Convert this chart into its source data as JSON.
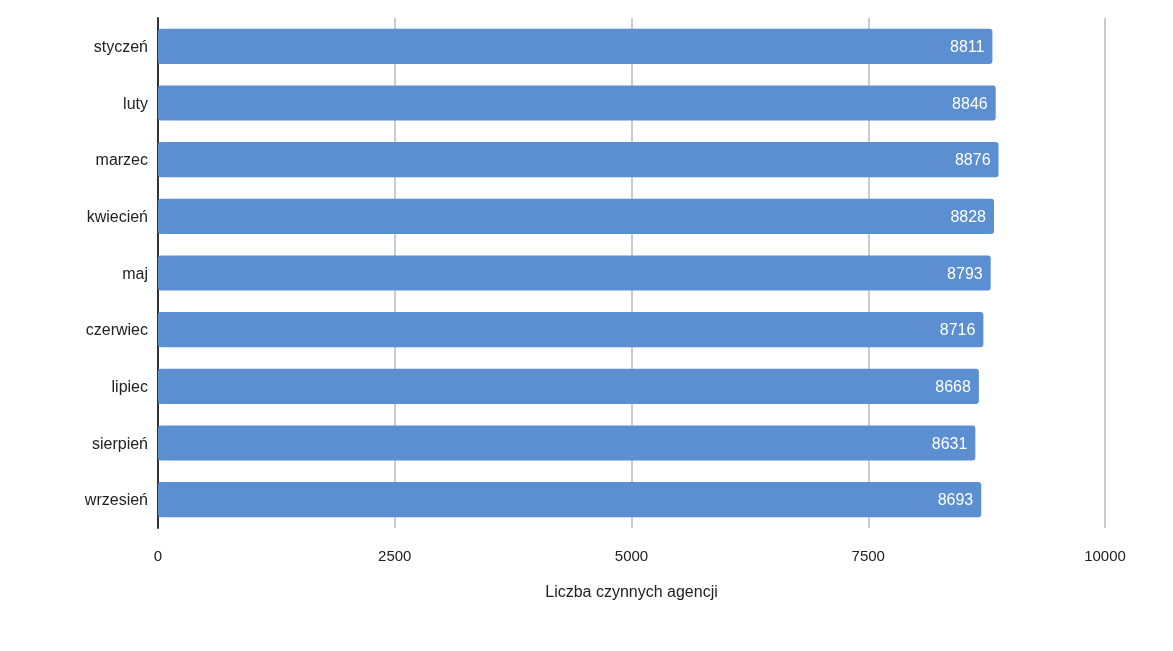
{
  "chart_data": {
    "type": "bar",
    "orientation": "horizontal",
    "xlabel": "Liczba czynnych agencji",
    "categories": [
      "styczeń",
      "luty",
      "marzec",
      "kwiecień",
      "maj",
      "czerwiec",
      "lipiec",
      "sierpień",
      "wrzesień"
    ],
    "values": [
      8811,
      8846,
      8876,
      8828,
      8793,
      8716,
      8668,
      8631,
      8693
    ],
    "color": "#5b8fd2",
    "xlim": [
      0,
      10000
    ],
    "xticks": [
      0,
      2500,
      5000,
      7500,
      10000
    ],
    "grid": "x",
    "data_labels": true
  }
}
